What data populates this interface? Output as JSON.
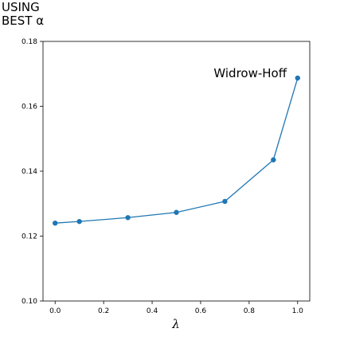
{
  "chart_data": {
    "type": "line",
    "title_lines": [
      "USING",
      "BEST α"
    ],
    "xlabel": "λ",
    "ylabel": "",
    "xlim": [
      -0.05,
      1.05
    ],
    "ylim": [
      0.1,
      0.18
    ],
    "x_ticks": [
      0.0,
      0.2,
      0.4,
      0.6,
      0.8,
      1.0
    ],
    "x_tick_labels": [
      "0.0",
      "0.2",
      "0.4",
      "0.6",
      "0.8",
      "1.0"
    ],
    "y_ticks": [
      0.1,
      0.12,
      0.14,
      0.16,
      0.18
    ],
    "y_tick_labels": [
      "0.10",
      "0.12",
      "0.14",
      "0.16",
      "0.18"
    ],
    "grid": false,
    "legend": "none",
    "series": [
      {
        "color": "#1f77b4",
        "marker": "circle",
        "x": [
          0.0,
          0.1,
          0.3,
          0.5,
          0.7,
          0.9,
          1.0
        ],
        "y": [
          0.124,
          0.1245,
          0.1257,
          0.1273,
          0.1307,
          0.1435,
          0.1687
        ]
      }
    ],
    "annotations": [
      {
        "text": "Widrow-Hoff",
        "x": 0.955,
        "y": 0.169
      }
    ]
  }
}
